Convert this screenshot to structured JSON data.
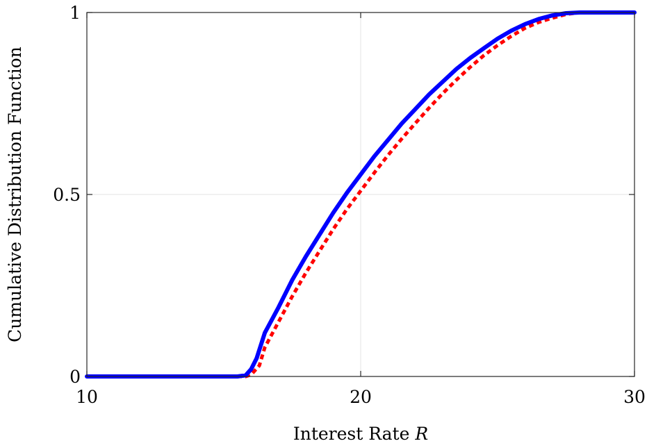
{
  "chart_data": {
    "type": "line",
    "xlabel": "Interest Rate",
    "xlabel_symbol": "R",
    "ylabel": "Cumulative Distribution Function",
    "xlim": [
      10,
      30
    ],
    "ylim": [
      0,
      1
    ],
    "x_ticks": [
      10,
      20,
      30
    ],
    "x_tick_labels": [
      "10",
      "20",
      "30"
    ],
    "y_ticks": [
      0,
      0.5,
      1
    ],
    "y_tick_labels": [
      "0",
      "0.5",
      "1"
    ],
    "grid": true,
    "legend": "none",
    "series": [
      {
        "color": "#0000ff",
        "style": "solid",
        "x": [
          10,
          11,
          12,
          13,
          14,
          15,
          15.5,
          15.8,
          16.0,
          16.2,
          16.5,
          17.0,
          17.5,
          18.0,
          18.5,
          19.0,
          19.5,
          20.0,
          20.5,
          21.0,
          21.5,
          22.0,
          22.5,
          23.0,
          23.5,
          24.0,
          24.5,
          25.0,
          25.5,
          26.0,
          26.5,
          27.0,
          27.5,
          28.0,
          29.0,
          30.0
        ],
        "y": [
          0,
          0,
          0,
          0,
          0,
          0,
          0.0,
          0.003,
          0.02,
          0.05,
          0.12,
          0.19,
          0.265,
          0.33,
          0.39,
          0.45,
          0.505,
          0.555,
          0.605,
          0.65,
          0.695,
          0.735,
          0.775,
          0.81,
          0.845,
          0.875,
          0.902,
          0.928,
          0.95,
          0.968,
          0.982,
          0.992,
          0.998,
          1.0,
          1.0,
          1.0
        ]
      },
      {
        "color": "#ff0000",
        "style": "dotted",
        "x": [
          10,
          11,
          12,
          13,
          14,
          15,
          15.5,
          15.8,
          16.0,
          16.3,
          16.5,
          17.0,
          17.5,
          18.0,
          18.5,
          19.0,
          19.5,
          20.0,
          20.5,
          21.0,
          21.5,
          22.0,
          22.5,
          23.0,
          23.5,
          24.0,
          24.5,
          25.0,
          25.5,
          26.0,
          26.5,
          27.0,
          27.5,
          28.0,
          29.0,
          30.0
        ],
        "y": [
          0,
          0,
          0,
          0,
          0,
          0,
          0.0,
          0.0,
          0.005,
          0.03,
          0.08,
          0.15,
          0.22,
          0.285,
          0.345,
          0.405,
          0.46,
          0.51,
          0.56,
          0.608,
          0.653,
          0.696,
          0.738,
          0.778,
          0.815,
          0.85,
          0.882,
          0.91,
          0.935,
          0.957,
          0.973,
          0.985,
          0.995,
          1.0,
          1.0,
          1.0
        ]
      }
    ]
  }
}
